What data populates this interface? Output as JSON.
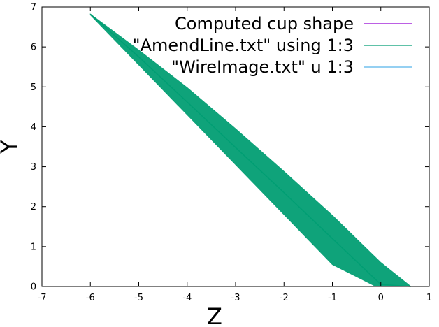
{
  "chart_data": {
    "type": "line",
    "title": "",
    "xlabel": "Z",
    "ylabel": "Y",
    "xlim": [
      -7,
      1
    ],
    "ylim": [
      0,
      7
    ],
    "xticks": [
      -7,
      -6,
      -5,
      -4,
      -3,
      -2,
      -1,
      0,
      1
    ],
    "yticks": [
      0,
      1,
      2,
      3,
      4,
      5,
      6,
      7
    ],
    "grid": false,
    "legend_position": "top-right",
    "series": [
      {
        "name": "Computed cup shape",
        "color": "#9400d3",
        "x": [],
        "y": []
      },
      {
        "name": "\"AmendLine.txt\" using 1:3",
        "color": "#009e73",
        "x": [
          -6.0,
          -5.0,
          -4.0,
          -3.0,
          -2.0,
          -1.0,
          0.0,
          0.62
        ],
        "y": [
          6.82,
          5.75,
          4.62,
          3.48,
          2.35,
          1.2,
          0.05,
          0.0
        ]
      },
      {
        "name": "\"WireImage.txt\" u 1:3",
        "color": "#56b4e9",
        "x": [],
        "y": []
      }
    ],
    "band": {
      "color": "#0fa37a",
      "upper_edge": {
        "x": [
          -6.0,
          -5.0,
          -4.0,
          -3.0,
          -2.0,
          -1.0,
          0.0,
          0.62
        ],
        "y": [
          6.82,
          5.92,
          4.98,
          3.95,
          2.88,
          1.78,
          0.6,
          0.0
        ]
      },
      "lower_edge": {
        "x": [
          -6.0,
          -5.0,
          -4.0,
          -3.0,
          -2.0,
          -1.0,
          -0.1
        ],
        "y": [
          6.8,
          5.55,
          4.3,
          3.05,
          1.8,
          0.55,
          0.0
        ]
      }
    }
  }
}
